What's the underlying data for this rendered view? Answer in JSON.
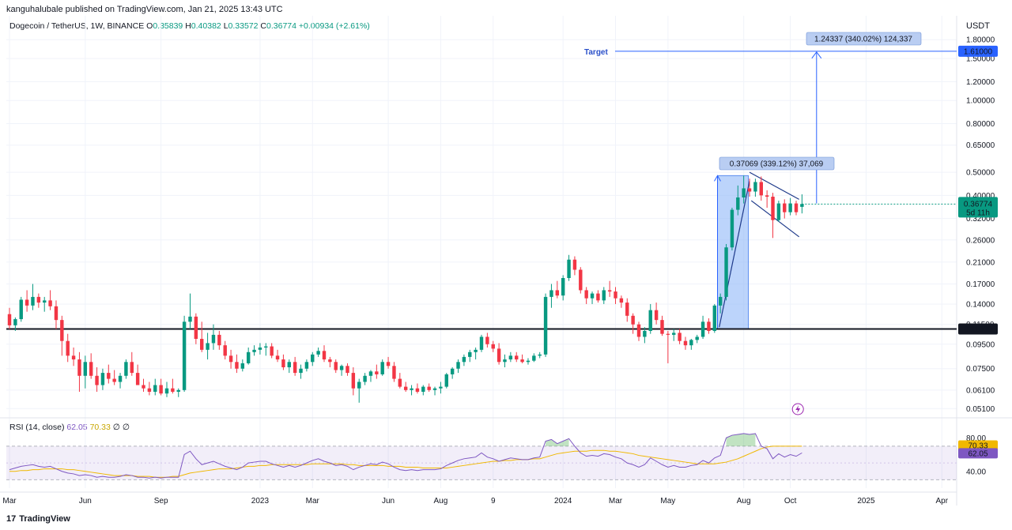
{
  "header": {
    "published_by": "kanguhalubale published on TradingView.com, Jan 21, 2025 13:43 UTC"
  },
  "legend": {
    "symbol": "Dogecoin / TetherUS, 1W, BINANCE",
    "o_label": "O",
    "o": "0.35839",
    "h_label": "H",
    "h": "0.40382",
    "l_label": "L",
    "l": "0.33572",
    "c_label": "C",
    "c": "0.36774",
    "change": "+0.00934 (+2.61%)"
  },
  "price_unit": "USDT",
  "rsi_legend": {
    "label": "RSI (14, close)",
    "value": "62.05",
    "ma": "70.33",
    "icons": "∅ ∅"
  },
  "brand": {
    "logo": "17",
    "name": "TradingView"
  },
  "annotations": {
    "target_label": "Target",
    "measure_top": "1.24337 (340.02%) 124,337",
    "measure_mid": "0.37069 (339.12%) 37,069"
  },
  "colors": {
    "up": "#089981",
    "down": "#f23645",
    "rsi": "#7e57c2",
    "rsi_ma": "#f0b800",
    "line_blue": "#2962ff",
    "box_blue": "#90b8f8",
    "support": "#131722",
    "price_label": "#089981"
  },
  "chart_data": {
    "type": "candlestick",
    "symbol": "Dogecoin / TetherUS",
    "interval": "1W",
    "y_scale": "log",
    "ylim": [
      0.047,
      2.1
    ],
    "price_ticks": [
      1.8,
      1.5,
      1.2,
      1.0,
      0.8,
      0.65,
      0.5,
      0.4,
      0.32,
      0.26,
      0.21,
      0.17,
      0.14,
      0.115,
      0.095,
      0.075,
      0.061,
      0.051
    ],
    "price_tick_labels": [
      "1.80000",
      "1.50000",
      "1.20000",
      "1.00000",
      "0.80000",
      "0.65000",
      "0.50000",
      "0.40000",
      "0.32000",
      "0.26000",
      "0.21000",
      "0.17000",
      "0.14000",
      "0.11500",
      "0.09500",
      "0.07500",
      "0.06100",
      "0.05100"
    ],
    "x_labels": [
      "Mar",
      "Jun",
      "Sep",
      "2023",
      "Mar",
      "Jun",
      "Aug",
      "9",
      "2024",
      "Mar",
      "May",
      "Aug",
      "Oct",
      "2025",
      "Apr"
    ],
    "x_label_weeks": [
      0,
      13,
      26,
      43,
      52,
      65,
      74,
      83,
      95,
      104,
      113,
      126,
      134,
      147,
      160
    ],
    "current_price": {
      "value": 0.36774,
      "label": "0.36774",
      "countdown": "5d 11h"
    },
    "support_level": {
      "value": 0.11,
      "label": "0.11000"
    },
    "target_level": {
      "value": 1.61,
      "label": "1.61000"
    },
    "candles": [
      [
        0.127,
        0.135,
        0.11,
        0.114
      ],
      [
        0.114,
        0.123,
        0.108,
        0.121
      ],
      [
        0.121,
        0.15,
        0.118,
        0.146
      ],
      [
        0.146,
        0.16,
        0.13,
        0.138
      ],
      [
        0.138,
        0.17,
        0.132,
        0.15
      ],
      [
        0.15,
        0.155,
        0.135,
        0.142
      ],
      [
        0.142,
        0.15,
        0.13,
        0.145
      ],
      [
        0.145,
        0.16,
        0.132,
        0.137
      ],
      [
        0.137,
        0.145,
        0.11,
        0.12
      ],
      [
        0.12,
        0.125,
        0.085,
        0.098
      ],
      [
        0.098,
        0.105,
        0.08,
        0.085
      ],
      [
        0.085,
        0.092,
        0.077,
        0.082
      ],
      [
        0.082,
        0.088,
        0.06,
        0.07
      ],
      [
        0.07,
        0.085,
        0.062,
        0.08
      ],
      [
        0.08,
        0.087,
        0.068,
        0.07
      ],
      [
        0.07,
        0.076,
        0.06,
        0.064
      ],
      [
        0.064,
        0.075,
        0.061,
        0.072
      ],
      [
        0.072,
        0.078,
        0.065,
        0.068
      ],
      [
        0.068,
        0.074,
        0.064,
        0.066
      ],
      [
        0.066,
        0.072,
        0.062,
        0.07
      ],
      [
        0.07,
        0.082,
        0.068,
        0.08
      ],
      [
        0.08,
        0.088,
        0.07,
        0.072
      ],
      [
        0.072,
        0.078,
        0.066,
        0.064
      ],
      [
        0.064,
        0.068,
        0.06,
        0.062
      ],
      [
        0.062,
        0.066,
        0.058,
        0.06
      ],
      [
        0.06,
        0.068,
        0.058,
        0.064
      ],
      [
        0.064,
        0.068,
        0.058,
        0.059
      ],
      [
        0.059,
        0.066,
        0.057,
        0.062
      ],
      [
        0.062,
        0.068,
        0.059,
        0.06
      ],
      [
        0.06,
        0.062,
        0.057,
        0.061
      ],
      [
        0.061,
        0.125,
        0.06,
        0.118
      ],
      [
        0.118,
        0.155,
        0.11,
        0.124
      ],
      [
        0.124,
        0.128,
        0.095,
        0.1
      ],
      [
        0.1,
        0.118,
        0.088,
        0.09
      ],
      [
        0.09,
        0.106,
        0.082,
        0.096
      ],
      [
        0.096,
        0.115,
        0.09,
        0.104
      ],
      [
        0.104,
        0.108,
        0.09,
        0.094
      ],
      [
        0.094,
        0.098,
        0.082,
        0.085
      ],
      [
        0.085,
        0.09,
        0.075,
        0.08
      ],
      [
        0.08,
        0.086,
        0.072,
        0.075
      ],
      [
        0.075,
        0.082,
        0.073,
        0.079
      ],
      [
        0.079,
        0.092,
        0.078,
        0.088
      ],
      [
        0.088,
        0.094,
        0.085,
        0.09
      ],
      [
        0.09,
        0.096,
        0.086,
        0.092
      ],
      [
        0.092,
        0.096,
        0.085,
        0.093
      ],
      [
        0.093,
        0.096,
        0.083,
        0.085
      ],
      [
        0.085,
        0.09,
        0.08,
        0.082
      ],
      [
        0.082,
        0.086,
        0.074,
        0.076
      ],
      [
        0.076,
        0.082,
        0.072,
        0.08
      ],
      [
        0.08,
        0.084,
        0.07,
        0.072
      ],
      [
        0.072,
        0.078,
        0.068,
        0.075
      ],
      [
        0.075,
        0.082,
        0.073,
        0.08
      ],
      [
        0.08,
        0.088,
        0.077,
        0.086
      ],
      [
        0.086,
        0.092,
        0.084,
        0.089
      ],
      [
        0.089,
        0.094,
        0.08,
        0.082
      ],
      [
        0.082,
        0.084,
        0.076,
        0.08
      ],
      [
        0.08,
        0.082,
        0.072,
        0.074
      ],
      [
        0.074,
        0.078,
        0.07,
        0.077
      ],
      [
        0.077,
        0.079,
        0.07,
        0.072
      ],
      [
        0.072,
        0.076,
        0.058,
        0.062
      ],
      [
        0.062,
        0.068,
        0.054,
        0.066
      ],
      [
        0.066,
        0.072,
        0.064,
        0.07
      ],
      [
        0.07,
        0.074,
        0.066,
        0.073
      ],
      [
        0.073,
        0.078,
        0.068,
        0.071
      ],
      [
        0.071,
        0.082,
        0.07,
        0.08
      ],
      [
        0.08,
        0.084,
        0.075,
        0.077
      ],
      [
        0.077,
        0.08,
        0.066,
        0.068
      ],
      [
        0.068,
        0.072,
        0.062,
        0.063
      ],
      [
        0.063,
        0.066,
        0.06,
        0.061
      ],
      [
        0.061,
        0.064,
        0.058,
        0.062
      ],
      [
        0.062,
        0.065,
        0.059,
        0.06
      ],
      [
        0.06,
        0.064,
        0.058,
        0.063
      ],
      [
        0.063,
        0.065,
        0.06,
        0.061
      ],
      [
        0.061,
        0.063,
        0.058,
        0.062
      ],
      [
        0.062,
        0.066,
        0.059,
        0.063
      ],
      [
        0.063,
        0.072,
        0.062,
        0.071
      ],
      [
        0.071,
        0.076,
        0.068,
        0.075
      ],
      [
        0.075,
        0.082,
        0.072,
        0.08
      ],
      [
        0.08,
        0.086,
        0.077,
        0.084
      ],
      [
        0.084,
        0.09,
        0.08,
        0.088
      ],
      [
        0.088,
        0.092,
        0.082,
        0.09
      ],
      [
        0.09,
        0.104,
        0.088,
        0.102
      ],
      [
        0.102,
        0.106,
        0.092,
        0.095
      ],
      [
        0.095,
        0.098,
        0.088,
        0.091
      ],
      [
        0.091,
        0.096,
        0.078,
        0.08
      ],
      [
        0.08,
        0.086,
        0.076,
        0.082
      ],
      [
        0.082,
        0.088,
        0.08,
        0.085
      ],
      [
        0.085,
        0.088,
        0.08,
        0.082
      ],
      [
        0.082,
        0.086,
        0.079,
        0.08
      ],
      [
        0.08,
        0.083,
        0.078,
        0.081
      ],
      [
        0.081,
        0.087,
        0.08,
        0.085
      ],
      [
        0.085,
        0.088,
        0.083,
        0.086
      ],
      [
        0.086,
        0.155,
        0.084,
        0.15
      ],
      [
        0.15,
        0.17,
        0.135,
        0.16
      ],
      [
        0.16,
        0.175,
        0.148,
        0.152
      ],
      [
        0.152,
        0.185,
        0.145,
        0.18
      ],
      [
        0.18,
        0.225,
        0.175,
        0.215
      ],
      [
        0.215,
        0.222,
        0.185,
        0.195
      ],
      [
        0.195,
        0.2,
        0.155,
        0.16
      ],
      [
        0.16,
        0.165,
        0.14,
        0.148
      ],
      [
        0.148,
        0.158,
        0.14,
        0.155
      ],
      [
        0.155,
        0.16,
        0.142,
        0.145
      ],
      [
        0.145,
        0.165,
        0.14,
        0.16
      ],
      [
        0.16,
        0.175,
        0.15,
        0.158
      ],
      [
        0.158,
        0.165,
        0.14,
        0.148
      ],
      [
        0.148,
        0.152,
        0.135,
        0.142
      ],
      [
        0.142,
        0.148,
        0.118,
        0.125
      ],
      [
        0.125,
        0.128,
        0.105,
        0.115
      ],
      [
        0.115,
        0.118,
        0.098,
        0.102
      ],
      [
        0.102,
        0.112,
        0.096,
        0.108
      ],
      [
        0.108,
        0.14,
        0.105,
        0.132
      ],
      [
        0.132,
        0.142,
        0.115,
        0.12
      ],
      [
        0.12,
        0.125,
        0.103,
        0.105
      ],
      [
        0.105,
        0.108,
        0.079,
        0.104
      ],
      [
        0.104,
        0.11,
        0.098,
        0.106
      ],
      [
        0.106,
        0.11,
        0.095,
        0.098
      ],
      [
        0.098,
        0.102,
        0.09,
        0.094
      ],
      [
        0.094,
        0.1,
        0.09,
        0.099
      ],
      [
        0.099,
        0.104,
        0.096,
        0.102
      ],
      [
        0.102,
        0.125,
        0.1,
        0.118
      ],
      [
        0.118,
        0.122,
        0.105,
        0.108
      ],
      [
        0.108,
        0.14,
        0.106,
        0.138
      ],
      [
        0.138,
        0.155,
        0.128,
        0.15
      ],
      [
        0.15,
        0.25,
        0.145,
        0.242
      ],
      [
        0.242,
        0.355,
        0.235,
        0.348
      ],
      [
        0.348,
        0.44,
        0.33,
        0.392
      ],
      [
        0.392,
        0.484,
        0.37,
        0.428
      ],
      [
        0.428,
        0.47,
        0.395,
        0.415
      ],
      [
        0.415,
        0.47,
        0.395,
        0.455
      ],
      [
        0.455,
        0.48,
        0.38,
        0.4
      ],
      [
        0.4,
        0.42,
        0.355,
        0.395
      ],
      [
        0.395,
        0.41,
        0.265,
        0.315
      ],
      [
        0.315,
        0.38,
        0.31,
        0.37
      ],
      [
        0.37,
        0.385,
        0.32,
        0.34
      ],
      [
        0.34,
        0.39,
        0.33,
        0.37
      ],
      [
        0.37,
        0.38,
        0.33,
        0.34
      ],
      [
        0.358,
        0.404,
        0.336,
        0.368
      ]
    ],
    "rsi": {
      "name": "RSI (14, close)",
      "ylim": [
        20,
        100
      ],
      "overbought": 70,
      "oversold": 30,
      "visible_ticks": [
        80,
        40
      ],
      "value": 62.05,
      "ma_value": 70.33,
      "values": [
        42,
        44,
        46,
        47,
        48,
        46,
        45,
        46,
        43,
        40,
        38,
        37,
        35,
        36,
        35,
        33,
        34,
        33,
        33,
        34,
        36,
        35,
        33,
        33,
        32,
        33,
        32,
        33,
        33,
        33,
        60,
        64,
        55,
        48,
        50,
        52,
        49,
        46,
        44,
        42,
        45,
        50,
        51,
        52,
        52,
        49,
        47,
        45,
        47,
        45,
        47,
        50,
        53,
        55,
        52,
        50,
        47,
        48,
        46,
        42,
        45,
        47,
        49,
        48,
        51,
        49,
        45,
        42,
        41,
        42,
        41,
        42,
        42,
        42,
        43,
        47,
        50,
        53,
        55,
        56,
        57,
        62,
        57,
        55,
        52,
        54,
        56,
        55,
        54,
        54,
        56,
        57,
        76,
        78,
        73,
        76,
        79,
        70,
        62,
        58,
        59,
        58,
        61,
        60,
        57,
        55,
        50,
        48,
        45,
        48,
        56,
        52,
        48,
        45,
        47,
        45,
        45,
        47,
        48,
        53,
        50,
        56,
        59,
        80,
        83,
        84,
        85,
        84,
        85,
        70,
        67,
        55,
        61,
        57,
        60,
        58,
        62
      ],
      "ma": [
        40,
        40,
        41,
        41,
        42,
        42,
        43,
        43,
        43,
        43,
        42,
        42,
        41,
        40,
        39,
        38,
        37,
        36,
        35,
        35,
        35,
        35,
        34,
        34,
        34,
        33,
        33,
        33,
        34,
        34,
        36,
        38,
        39,
        40,
        41,
        42,
        43,
        43,
        43,
        44,
        45,
        46,
        46,
        47,
        47,
        48,
        48,
        48,
        48,
        48,
        48,
        48,
        49,
        49,
        49,
        49,
        49,
        49,
        48,
        48,
        47,
        47,
        47,
        47,
        47,
        46,
        46,
        46,
        45,
        45,
        45,
        44,
        44,
        44,
        44,
        44,
        45,
        46,
        47,
        48,
        49,
        50,
        51,
        52,
        52,
        53,
        53,
        54,
        54,
        54,
        55,
        55,
        57,
        59,
        61,
        62,
        63,
        64,
        64,
        64,
        65,
        65,
        65,
        64,
        64,
        63,
        62,
        61,
        59,
        58,
        57,
        56,
        55,
        54,
        53,
        52,
        51,
        50,
        49,
        49,
        49,
        49,
        50,
        51,
        53,
        55,
        58,
        61,
        64,
        67,
        69,
        70,
        70,
        70,
        70,
        70,
        70
      ]
    }
  }
}
